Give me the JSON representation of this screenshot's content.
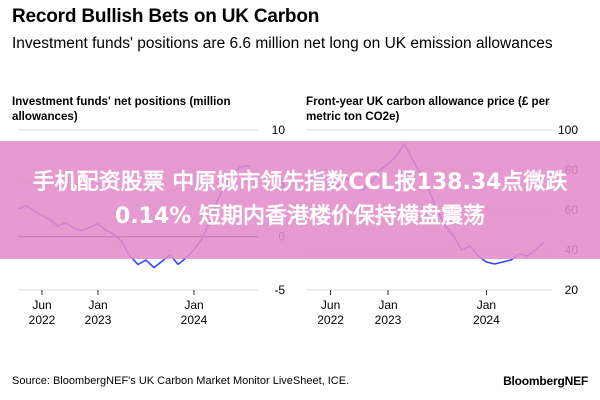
{
  "header": {
    "title": "Record Bullish Bets on UK Carbon",
    "subtitle": "Investment funds' positions are 6.6 million net long on UK emission allowances"
  },
  "banner": {
    "text": "手机配资股票 中原城市领先指数CCL报138.34点微跌0.14% 短期内香港楼价保持横盘震荡"
  },
  "footer": {
    "source": "Source: BloombergNEF's UK Carbon Market Monitor LiveSheet, ICE.",
    "brand": "BloombergNEF"
  },
  "colors": {
    "line": "#2b48ff",
    "grid": "#cfcfcf",
    "zero": "#000000"
  },
  "chart_data": [
    {
      "type": "line",
      "title": "Investment funds' net positions (million allowances)",
      "x_ticks": [
        {
          "date": "2022-06",
          "label": [
            "Jun",
            "2022"
          ]
        },
        {
          "date": "2023-01",
          "label": [
            "Jan",
            "2023"
          ]
        },
        {
          "date": "2024-01",
          "label": [
            "Jan",
            "2024"
          ]
        }
      ],
      "xlim": [
        "2022-03",
        "2024-09"
      ],
      "y_ticks": [
        10,
        5,
        0,
        -5
      ],
      "ylim": [
        -5,
        10
      ],
      "grid": true,
      "series": [
        {
          "x": [
            "2022-03",
            "2022-04",
            "2022-05",
            "2022-06",
            "2022-07",
            "2022-08",
            "2022-09",
            "2022-10",
            "2022-11",
            "2022-12",
            "2023-01",
            "2023-02",
            "2023-03",
            "2023-04",
            "2023-05",
            "2023-06",
            "2023-07",
            "2023-08",
            "2023-09",
            "2023-10",
            "2023-11",
            "2023-12",
            "2024-01",
            "2024-02",
            "2024-03",
            "2024-04",
            "2024-05",
            "2024-06",
            "2024-07",
            "2024-08"
          ],
          "y": [
            2.6,
            2.9,
            2.4,
            2.0,
            1.6,
            1.0,
            1.3,
            0.8,
            0.6,
            0.9,
            1.2,
            0.6,
            0.2,
            -0.5,
            -1.8,
            -2.6,
            -2.2,
            -2.9,
            -2.3,
            -1.7,
            -2.6,
            -2.0,
            -1.2,
            -0.2,
            1.5,
            3.5,
            5.0,
            6.1,
            6.6,
            6.6
          ]
        }
      ]
    },
    {
      "type": "line",
      "title": "Front-year UK carbon allowance price (£ per metric ton CO2e)",
      "x_ticks": [
        {
          "date": "2022-06",
          "label": [
            "Jun",
            "2022"
          ]
        },
        {
          "date": "2023-01",
          "label": [
            "Jan",
            "2023"
          ]
        },
        {
          "date": "2024-01",
          "label": [
            "Jan",
            "2024"
          ]
        }
      ],
      "xlim": [
        "2022-03",
        "2024-09"
      ],
      "y_ticks": [
        100,
        80,
        60,
        40,
        20
      ],
      "ylim": [
        20,
        100
      ],
      "grid": true,
      "series": [
        {
          "x": [
            "2022-03",
            "2022-04",
            "2022-05",
            "2022-06",
            "2022-07",
            "2022-08",
            "2022-09",
            "2022-10",
            "2022-11",
            "2022-12",
            "2023-01",
            "2023-02",
            "2023-03",
            "2023-04",
            "2023-05",
            "2023-06",
            "2023-07",
            "2023-08",
            "2023-09",
            "2023-10",
            "2023-11",
            "2023-12",
            "2024-01",
            "2024-02",
            "2024-03",
            "2024-04",
            "2024-05",
            "2024-06",
            "2024-07",
            "2024-08"
          ],
          "y": [
            74,
            77,
            75,
            73,
            72,
            76,
            71,
            70,
            74,
            80,
            83,
            87,
            93,
            85,
            78,
            70,
            60,
            52,
            47,
            40,
            42,
            37,
            34,
            33,
            34,
            35,
            38,
            37,
            40,
            44
          ]
        }
      ]
    }
  ]
}
